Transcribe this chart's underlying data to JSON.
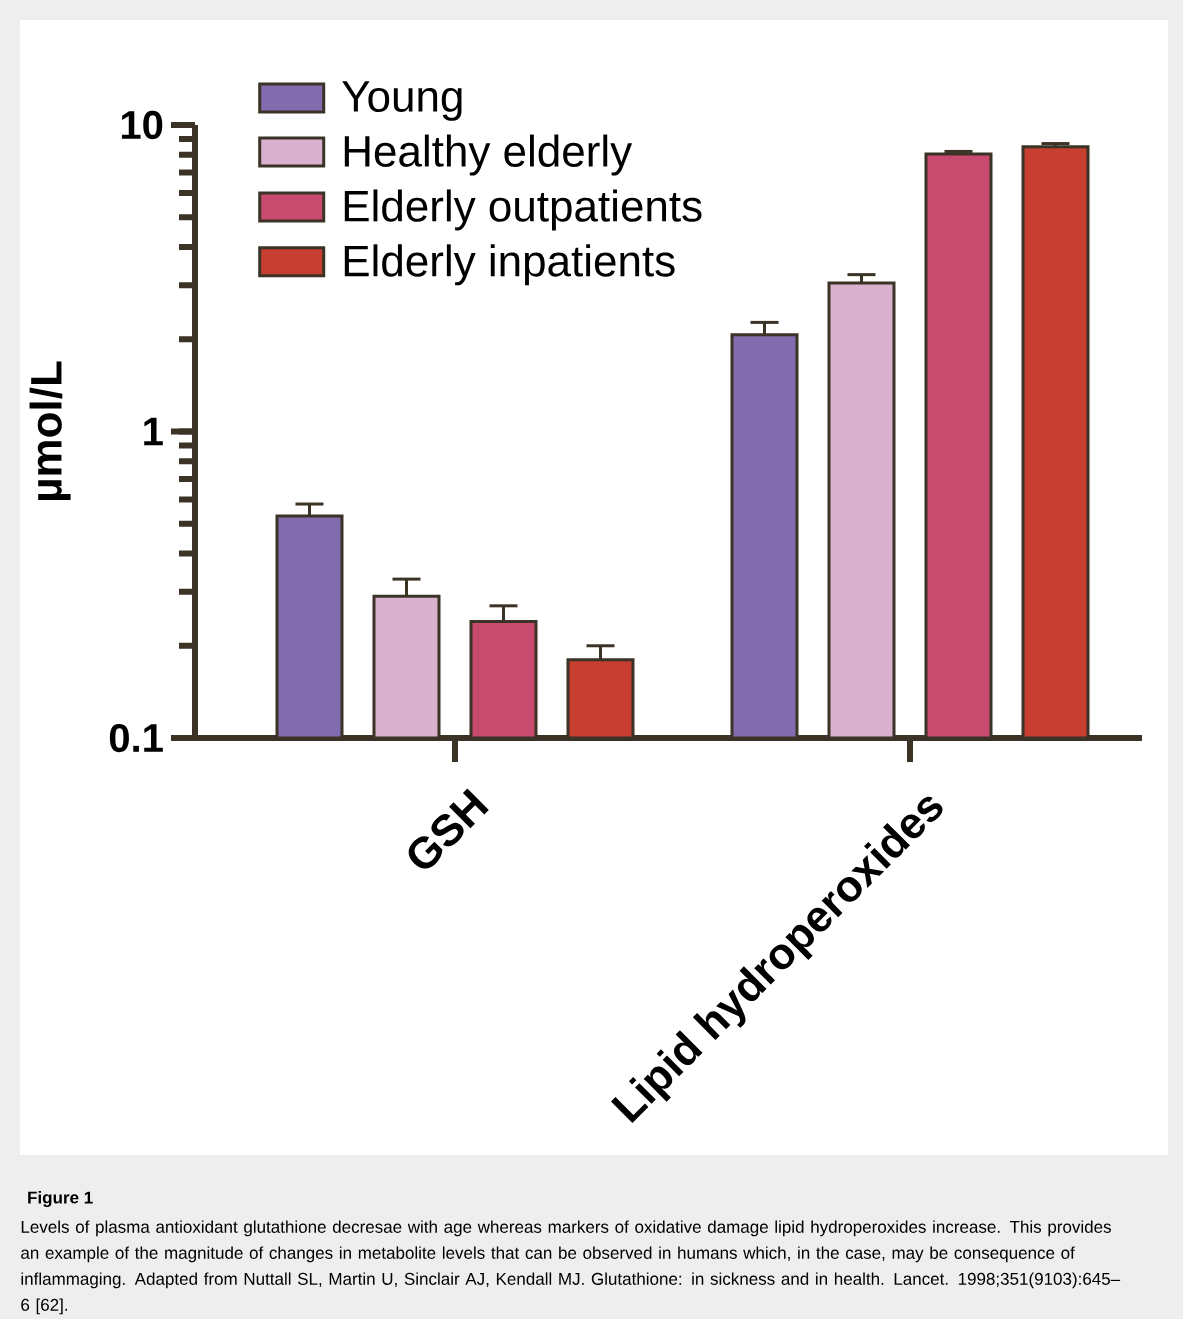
{
  "chart_data": {
    "type": "bar",
    "title": "Figure 1",
    "ylabel": "µmol/L",
    "categories": [
      "GSH",
      "Lipid hydroperoxides"
    ],
    "series": [
      {
        "name": "Young",
        "color": "#826cb0",
        "values": [
          0.53,
          2.07
        ],
        "errors": [
          0.05,
          0.2
        ]
      },
      {
        "name": "Healthy elderly",
        "color": "#d7b1cd",
        "values": [
          0.29,
          3.05
        ],
        "errors": [
          0.04,
          0.2
        ]
      },
      {
        "name": "Elderly outpatients",
        "color": "#c84a6e",
        "values": [
          0.24,
          8.05
        ],
        "errors": [
          0.03,
          0.15
        ]
      },
      {
        "name": "Elderly inpatients",
        "color": "#c63f30",
        "values": [
          0.18,
          8.5
        ],
        "errors": [
          0.02,
          0.2
        ]
      }
    ],
    "log": true,
    "ylim": [
      0.1,
      10
    ],
    "yticks": [
      0.1,
      1,
      10
    ],
    "legend": "top left",
    "grid": false,
    "annotations": [
      "Levels of plasma antioxidant glutathione decresae with age whereas markers of oxidative damage lipid hydroperoxides increase. This provides an example of the magnitude of changes in metabolite levels that can be observed in humans which, in the case, may be consequence of inflammaging. Adapted from Nuttall SL, Martin U, Sinclair AJ, Kendall MJ. Glutathione: in sickness and in health. Lancet. 1998;351(9103):645–6 [62]."
    ]
  }
}
